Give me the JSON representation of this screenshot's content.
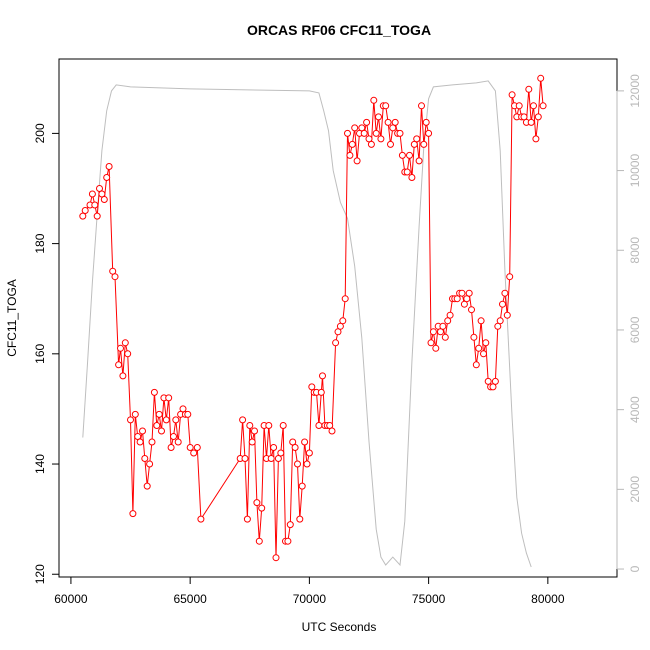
{
  "chart_data": {
    "type": "line",
    "title": "ORCAS RF06 CFC11_TOGA",
    "xlabel": "UTC Seconds",
    "ylabel": "CFC11_TOGA",
    "xlim": [
      59500,
      82900
    ],
    "ylim": [
      119.5,
      213.5
    ],
    "y2lim": [
      -200,
      12800
    ],
    "x_ticks": [
      "60000",
      "65000",
      "70000",
      "75000",
      "80000"
    ],
    "y_ticks": [
      "120",
      "140",
      "160",
      "180",
      "200"
    ],
    "y2_ticks": [
      "0",
      "2000",
      "4000",
      "6000",
      "8000",
      "10000",
      "12000"
    ],
    "colors": {
      "cfc11": "#ff0000",
      "altitude": "#bebebe",
      "axis": "#000000",
      "axis_right": "#b8b8b8"
    },
    "series": [
      {
        "marker": "open-circle",
        "points": [
          [
            60500,
            185
          ],
          [
            60600,
            186
          ],
          [
            60800,
            187
          ],
          [
            60900,
            189
          ],
          [
            61000,
            187
          ],
          [
            61100,
            185
          ],
          [
            61200,
            190
          ],
          [
            61300,
            189
          ],
          [
            61400,
            188
          ],
          [
            61500,
            192
          ],
          [
            61600,
            194
          ],
          [
            61750,
            175
          ],
          [
            61850,
            174
          ],
          [
            62000,
            158
          ],
          [
            62080,
            161
          ],
          [
            62180,
            156
          ],
          [
            62280,
            162
          ],
          [
            62380,
            160
          ],
          [
            62500,
            148
          ],
          [
            62600,
            131
          ],
          [
            62700,
            149
          ],
          [
            62800,
            145
          ],
          [
            62900,
            144
          ],
          [
            63000,
            146
          ],
          [
            63100,
            141
          ],
          [
            63200,
            136
          ],
          [
            63300,
            140
          ],
          [
            63400,
            144
          ],
          [
            63500,
            153
          ],
          [
            63600,
            147
          ],
          [
            63700,
            149
          ],
          [
            63800,
            146
          ],
          [
            63900,
            152
          ],
          [
            64000,
            148
          ],
          [
            64100,
            152
          ],
          [
            64200,
            143
          ],
          [
            64300,
            145
          ],
          [
            64400,
            148
          ],
          [
            64500,
            144
          ],
          [
            64600,
            149
          ],
          [
            64700,
            150
          ],
          [
            64800,
            149
          ],
          [
            64900,
            149
          ],
          [
            65000,
            143
          ],
          [
            65150,
            142
          ],
          [
            65300,
            143
          ],
          [
            65450,
            130
          ],
          [
            67100,
            141
          ],
          [
            67200,
            148
          ],
          [
            67300,
            141
          ],
          [
            67400,
            130
          ],
          [
            67500,
            147
          ],
          [
            67600,
            144
          ],
          [
            67700,
            146
          ],
          [
            67800,
            133
          ],
          [
            67900,
            126
          ],
          [
            68000,
            132
          ],
          [
            68100,
            147
          ],
          [
            68200,
            141
          ],
          [
            68300,
            147
          ],
          [
            68400,
            141
          ],
          [
            68500,
            143
          ],
          [
            68600,
            123
          ],
          [
            68700,
            141
          ],
          [
            68800,
            142
          ],
          [
            68900,
            147
          ],
          [
            69000,
            126
          ],
          [
            69100,
            126
          ],
          [
            69200,
            129
          ],
          [
            69300,
            144
          ],
          [
            69400,
            143
          ],
          [
            69500,
            140
          ],
          [
            69600,
            130
          ],
          [
            69700,
            136
          ],
          [
            69800,
            144
          ],
          [
            69900,
            140
          ],
          [
            70000,
            142
          ],
          [
            70100,
            154
          ],
          [
            70200,
            153
          ],
          [
            70300,
            153
          ],
          [
            70400,
            147
          ],
          [
            70500,
            153
          ],
          [
            70550,
            156
          ],
          [
            70650,
            147
          ],
          [
            70750,
            147
          ],
          [
            70850,
            147
          ],
          [
            70950,
            146
          ],
          [
            71100,
            162
          ],
          [
            71200,
            164
          ],
          [
            71300,
            165
          ],
          [
            71400,
            166
          ],
          [
            71500,
            170
          ],
          [
            71600,
            200
          ],
          [
            71700,
            196
          ],
          [
            71800,
            198
          ],
          [
            71900,
            201
          ],
          [
            72000,
            195
          ],
          [
            72100,
            200
          ],
          [
            72200,
            201
          ],
          [
            72300,
            200
          ],
          [
            72400,
            202
          ],
          [
            72500,
            199
          ],
          [
            72600,
            198
          ],
          [
            72700,
            206
          ],
          [
            72800,
            200
          ],
          [
            72900,
            203
          ],
          [
            73000,
            199
          ],
          [
            73100,
            205
          ],
          [
            73200,
            205
          ],
          [
            73300,
            202
          ],
          [
            73400,
            198
          ],
          [
            73500,
            201
          ],
          [
            73600,
            202
          ],
          [
            73700,
            200
          ],
          [
            73800,
            200
          ],
          [
            73900,
            196
          ],
          [
            74000,
            193
          ],
          [
            74100,
            193
          ],
          [
            74200,
            196
          ],
          [
            74300,
            192
          ],
          [
            74400,
            198
          ],
          [
            74500,
            199
          ],
          [
            74600,
            195
          ],
          [
            74700,
            205
          ],
          [
            74800,
            198
          ],
          [
            74900,
            202
          ],
          [
            75000,
            200
          ],
          [
            75100,
            162
          ],
          [
            75200,
            164
          ],
          [
            75300,
            161
          ],
          [
            75400,
            165
          ],
          [
            75500,
            164
          ],
          [
            75600,
            165
          ],
          [
            75700,
            163
          ],
          [
            75800,
            166
          ],
          [
            75900,
            167
          ],
          [
            76000,
            170
          ],
          [
            76100,
            170
          ],
          [
            76200,
            170
          ],
          [
            76300,
            171
          ],
          [
            76400,
            171
          ],
          [
            76500,
            169
          ],
          [
            76600,
            170
          ],
          [
            76700,
            171
          ],
          [
            76800,
            168
          ],
          [
            76900,
            163
          ],
          [
            77000,
            158
          ],
          [
            77100,
            161
          ],
          [
            77200,
            166
          ],
          [
            77300,
            160
          ],
          [
            77400,
            162
          ],
          [
            77500,
            155
          ],
          [
            77600,
            154
          ],
          [
            77700,
            154
          ],
          [
            77800,
            155
          ],
          [
            77900,
            165
          ],
          [
            78000,
            166
          ],
          [
            78100,
            169
          ],
          [
            78200,
            171
          ],
          [
            78300,
            167
          ],
          [
            78400,
            174
          ],
          [
            78500,
            207
          ],
          [
            78600,
            205
          ],
          [
            78700,
            203
          ],
          [
            78800,
            205
          ],
          [
            78900,
            203
          ],
          [
            79000,
            203
          ],
          [
            79100,
            202
          ],
          [
            79200,
            208
          ],
          [
            79300,
            202
          ],
          [
            79400,
            205
          ],
          [
            79500,
            199
          ],
          [
            79600,
            203
          ],
          [
            79700,
            210
          ],
          [
            79800,
            205
          ]
        ]
      },
      {
        "axis": "right",
        "points": [
          [
            60500,
            3300
          ],
          [
            60700,
            5200
          ],
          [
            60900,
            7200
          ],
          [
            61100,
            8900
          ],
          [
            61300,
            10500
          ],
          [
            61500,
            11500
          ],
          [
            61700,
            12000
          ],
          [
            61900,
            12150
          ],
          [
            62500,
            12100
          ],
          [
            65000,
            12050
          ],
          [
            70000,
            12000
          ],
          [
            70400,
            11950
          ],
          [
            70600,
            11500
          ],
          [
            70800,
            11000
          ],
          [
            71000,
            10000
          ],
          [
            71300,
            9200
          ],
          [
            71600,
            8800
          ],
          [
            71900,
            7600
          ],
          [
            72200,
            5800
          ],
          [
            72500,
            3200
          ],
          [
            72800,
            1000
          ],
          [
            73000,
            300
          ],
          [
            73200,
            100
          ],
          [
            73500,
            300
          ],
          [
            73800,
            100
          ],
          [
            74000,
            1200
          ],
          [
            74300,
            5200
          ],
          [
            74600,
            8600
          ],
          [
            74800,
            10600
          ],
          [
            75000,
            11800
          ],
          [
            75200,
            12100
          ],
          [
            76000,
            12150
          ],
          [
            77000,
            12200
          ],
          [
            77500,
            12250
          ],
          [
            77800,
            12000
          ],
          [
            78000,
            10500
          ],
          [
            78200,
            7500
          ],
          [
            78500,
            3800
          ],
          [
            78700,
            1800
          ],
          [
            78900,
            900
          ],
          [
            79100,
            400
          ],
          [
            79300,
            50
          ]
        ]
      }
    ]
  }
}
